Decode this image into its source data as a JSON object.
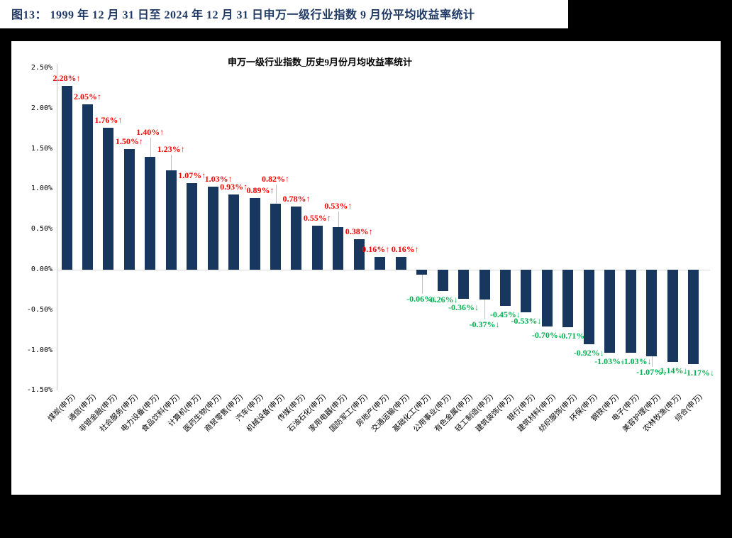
{
  "figure_caption": "图13： 1999 年 12 月 31 日至 2024 年 12 月 31 日申万一级行业指数 9 月份平均收益率统计",
  "colors": {
    "bar": "#17375E",
    "positive_label": "#FF0000",
    "negative_label": "#00B050",
    "caption": "#1F3864",
    "grid": "#D9D9D9",
    "axis": "#C6C6C6"
  },
  "chart_data": {
    "type": "bar",
    "title": "申万一级行业指数_历史9月份月均收益率统计",
    "xlabel": "",
    "ylabel": "",
    "ylim": [
      -1.5,
      2.5
    ],
    "grid": "zero-line-only",
    "legend": "none",
    "ytick_labels": [
      "2.50%",
      "2.00%",
      "1.50%",
      "1.00%",
      "0.50%",
      "0.00%",
      "-0.50%",
      "-1.00%",
      "-1.50%"
    ],
    "categories": [
      "煤炭(申万)",
      "通信(申万)",
      "非银金融(申万)",
      "社会服务(申万)",
      "电力设备(申万)",
      "食品饮料(申万)",
      "计算机(申万)",
      "医药生物(申万)",
      "商贸零售(申万)",
      "汽车(申万)",
      "机械设备(申万)",
      "传媒(申万)",
      "石油石化(申万)",
      "家用电器(申万)",
      "国防军工(申万)",
      "房地产(申万)",
      "交通运输(申万)",
      "基础化工(申万)",
      "公用事业(申万)",
      "有色金属(申万)",
      "轻工制造(申万)",
      "建筑装饰(申万)",
      "银行(申万)",
      "建筑材料(申万)",
      "纺织服饰(申万)",
      "环保(申万)",
      "钢铁(申万)",
      "电子(申万)",
      "美容护理(申万)",
      "农林牧渔(申万)",
      "综合(申万)"
    ],
    "values": [
      2.28,
      2.05,
      1.76,
      1.5,
      1.4,
      1.23,
      1.07,
      1.03,
      0.93,
      0.89,
      0.82,
      0.78,
      0.55,
      0.53,
      0.38,
      0.16,
      0.16,
      -0.06,
      -0.26,
      -0.36,
      -0.37,
      -0.45,
      -0.53,
      -0.7,
      -0.71,
      -0.92,
      -1.03,
      -1.03,
      -1.07,
      -1.14,
      -1.17
    ],
    "point_labels": [
      "2.28%↑",
      "2.05%↑",
      "1.76%↑",
      "1.50%↑",
      "1.40%↑",
      "1.23%↑",
      "1.07%↑",
      "1.03%↑",
      "0.93%↑",
      "0.89%↑",
      "0.82%↑",
      "0.78%↑",
      "0.55%↑",
      "0.53%↑",
      "0.38%↑",
      "0.16%↑",
      "0.16%↑",
      "-0.06%↓",
      "-0.26%↓",
      "-0.36%↓",
      "-0.37%↓",
      "-0.45%↓",
      "-0.53%↓",
      "-0.70%↓",
      "-0.71%↓",
      "-0.92%↓",
      "-1.03%↓",
      "-1.03%↓",
      "-1.07%↓",
      "-1.14%↓",
      "-1.17%↓"
    ],
    "label_offsets": {
      "4": {
        "dy": -24,
        "leader": true
      },
      "5": {
        "dy": -19,
        "leader": true
      },
      "7": {
        "dx": 8
      },
      "9": {
        "dx": 8
      },
      "10": {
        "dy": -24,
        "leader": true
      },
      "13": {
        "dy": -19,
        "leader": true
      },
      "15": {
        "dx": -6
      },
      "16": {
        "dx": 6
      },
      "17": {
        "dy": 22,
        "leader": true
      },
      "20": {
        "dy": 23,
        "leader": true
      },
      "24": {
        "dx": 8
      },
      "27": {
        "dx": 8
      },
      "28": {
        "dy": 10,
        "leader": true
      },
      "30": {
        "dx": 8
      }
    }
  }
}
